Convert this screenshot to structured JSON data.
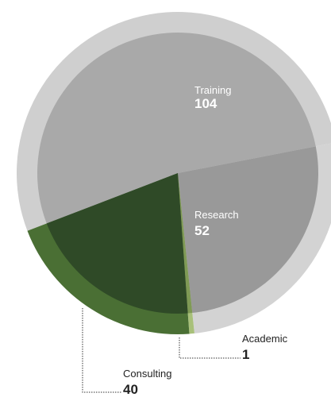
{
  "chart_data": {
    "type": "pie",
    "title": "",
    "categories": [
      "Training",
      "Research",
      "Academic",
      "Consulting"
    ],
    "values": [
      104,
      52,
      1,
      40
    ],
    "labels": [
      {
        "name": "Training",
        "value": "104"
      },
      {
        "name": "Research",
        "value": "52"
      },
      {
        "name": "Academic",
        "value": "1"
      },
      {
        "name": "Consulting",
        "value": "40"
      }
    ],
    "colors": {
      "Training": {
        "ring": "#cfcfcf",
        "core": "#a9a9a9"
      },
      "Research": {
        "ring": "#d3d3d3",
        "core": "#999999"
      },
      "Academic": {
        "ring": "#a8c07a",
        "core": "#7f9a55"
      },
      "Consulting": {
        "ring": "#4a6f34",
        "core": "#2f4a27"
      },
      "label_light": "#ffffff",
      "label_dark": "#222222",
      "leader": "#333333"
    },
    "legend": "none",
    "grid": false
  }
}
